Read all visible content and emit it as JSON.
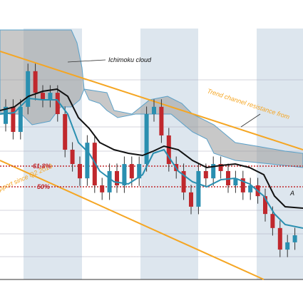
{
  "chart_data": {
    "type": "candlestick",
    "annotations": {
      "cloud": "Ichimoku cloud",
      "resistance": "Trend channel resistance from",
      "support": "pport since Q2 2013",
      "fib_618": "61.8%",
      "fib_50": "50%",
      "point_a": "A"
    },
    "ylim": [
      0,
      100
    ],
    "up_color": "#2a8fb0",
    "down_color": "#c0282d",
    "open": [
      62,
      68.8,
      58.8,
      68.8,
      83.0,
      74.4,
      71.6,
      74.4,
      65.9,
      51.7,
      46.0,
      40.3,
      54.5,
      37.5,
      34.7,
      43.2,
      37.5,
      46.0,
      40.3,
      46.0,
      65.9,
      68.8,
      57.4,
      46.0,
      43.2,
      34.7,
      29.0,
      43.2,
      40.3,
      46.0,
      43.2,
      37.5,
      40.3,
      34.7,
      37.5,
      33.2,
      26.1,
      20.5,
      11.9,
      14.8
    ],
    "high": [
      71.8,
      71.8,
      71.8,
      86,
      86,
      77.4,
      77.4,
      77.4,
      68.9,
      54.7,
      49,
      57.5,
      57.5,
      40.5,
      46.2,
      46.2,
      49,
      49,
      49,
      68.9,
      71.8,
      71.8,
      60.4,
      49,
      46.2,
      37.7,
      46.2,
      46.2,
      49,
      49,
      46.2,
      43.3,
      43.3,
      40.5,
      40.5,
      36.2,
      29.1,
      23.5,
      17.8,
      20.6
    ],
    "low": [
      59,
      55.8,
      55.8,
      65.8,
      71.4,
      68.6,
      68.6,
      62.9,
      48.7,
      43,
      37.3,
      37.3,
      34.5,
      31.7,
      31.7,
      34.5,
      34.5,
      37.3,
      37.3,
      43,
      62.9,
      54.4,
      43,
      40.2,
      31.7,
      26,
      26,
      37.3,
      37.3,
      40.2,
      34.5,
      34.5,
      31.7,
      31.7,
      30.2,
      23.1,
      17.5,
      8.9,
      8.9,
      11.8
    ],
    "close": [
      68.8,
      58.8,
      68.8,
      83.0,
      74.4,
      71.6,
      74.4,
      65.9,
      51.7,
      46.0,
      40.3,
      54.5,
      37.5,
      34.7,
      43.2,
      37.5,
      46.0,
      40.3,
      46.0,
      65.9,
      68.8,
      57.4,
      46.0,
      43.2,
      34.7,
      29.0,
      43.2,
      40.3,
      46.0,
      43.2,
      37.5,
      40.3,
      34.7,
      37.5,
      33.2,
      26.1,
      20.5,
      11.9,
      14.8,
      17.6
    ]
  }
}
